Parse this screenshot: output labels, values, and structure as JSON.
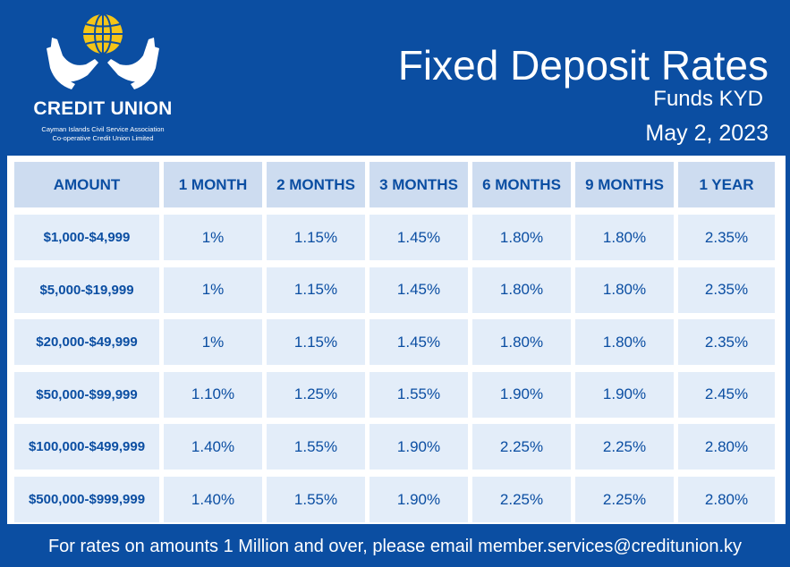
{
  "header": {
    "brand": "CREDIT UNION",
    "org_line1": "Cayman Islands Civil Service Association",
    "org_line2": "Co-operative Credit Union Limited",
    "title": "Fixed Deposit Rates",
    "subtitle": "Funds KYD",
    "date": "May 2, 2023"
  },
  "colors": {
    "brand_blue": "#0b4ea2",
    "globe_yellow": "#f5c518",
    "cell_light": "#e3edf9",
    "header_cell": "#cddcf0"
  },
  "table": {
    "columns": [
      "AMOUNT",
      "1 MONTH",
      "2 MONTHS",
      "3 MONTHS",
      "6 MONTHS",
      "9 MONTHS",
      "1 YEAR"
    ],
    "rows": [
      [
        "$1,000-$4,999",
        "1%",
        "1.15%",
        "1.45%",
        "1.80%",
        "1.80%",
        "2.35%"
      ],
      [
        "$5,000-$19,999",
        "1%",
        "1.15%",
        "1.45%",
        "1.80%",
        "1.80%",
        "2.35%"
      ],
      [
        "$20,000-$49,999",
        "1%",
        "1.15%",
        "1.45%",
        "1.80%",
        "1.80%",
        "2.35%"
      ],
      [
        "$50,000-$99,999",
        "1.10%",
        "1.25%",
        "1.55%",
        "1.90%",
        "1.90%",
        "2.45%"
      ],
      [
        "$100,000-$499,999",
        "1.40%",
        "1.55%",
        "1.90%",
        "2.25%",
        "2.25%",
        "2.80%"
      ],
      [
        "$500,000-$999,999",
        "1.40%",
        "1.55%",
        "1.90%",
        "2.25%",
        "2.25%",
        "2.80%"
      ]
    ]
  },
  "footer": {
    "note": "For rates on amounts 1 Million and over, please email member.services@creditunion.ky"
  }
}
